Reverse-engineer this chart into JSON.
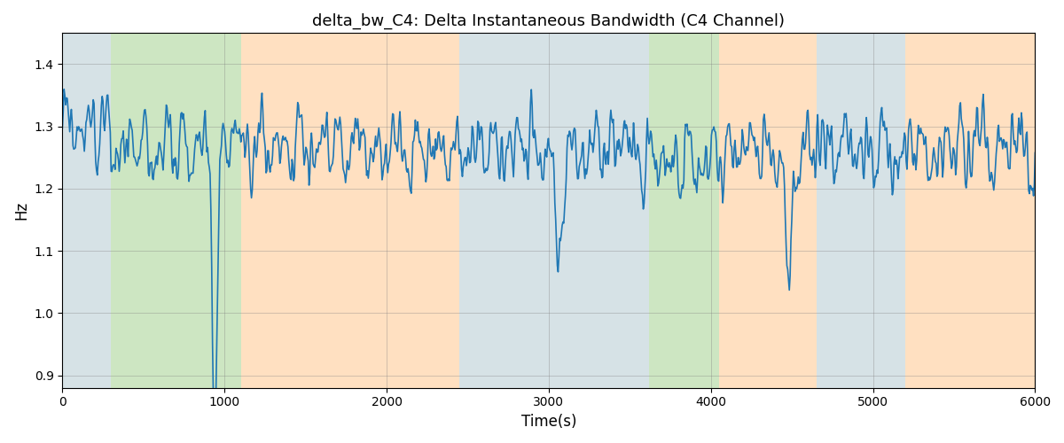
{
  "title": "delta_bw_C4: Delta Instantaneous Bandwidth (C4 Channel)",
  "xlabel": "Time(s)",
  "ylabel": "Hz",
  "xlim": [
    0,
    6000
  ],
  "ylim": [
    0.88,
    1.45
  ],
  "line_color": "#1f77b4",
  "line_width": 1.2,
  "bg_bands": [
    {
      "xmin": 0,
      "xmax": 300,
      "color": "#AEC6CF",
      "alpha": 0.5
    },
    {
      "xmin": 300,
      "xmax": 1100,
      "color": "#90C878",
      "alpha": 0.45
    },
    {
      "xmin": 1100,
      "xmax": 2450,
      "color": "#FFCC99",
      "alpha": 0.6
    },
    {
      "xmin": 2450,
      "xmax": 3500,
      "color": "#AEC6CF",
      "alpha": 0.5
    },
    {
      "xmin": 3500,
      "xmax": 3620,
      "color": "#AEC6CF",
      "alpha": 0.5
    },
    {
      "xmin": 3620,
      "xmax": 4050,
      "color": "#90C878",
      "alpha": 0.45
    },
    {
      "xmin": 4050,
      "xmax": 4650,
      "color": "#FFCC99",
      "alpha": 0.6
    },
    {
      "xmin": 4650,
      "xmax": 5200,
      "color": "#AEC6CF",
      "alpha": 0.5
    },
    {
      "xmin": 5200,
      "xmax": 6000,
      "color": "#FFCC99",
      "alpha": 0.6
    }
  ],
  "seed": 1234,
  "n_points": 1200,
  "base_mean": 1.265,
  "title_fontsize": 13,
  "figsize": [
    12,
    5
  ],
  "dpi": 100
}
